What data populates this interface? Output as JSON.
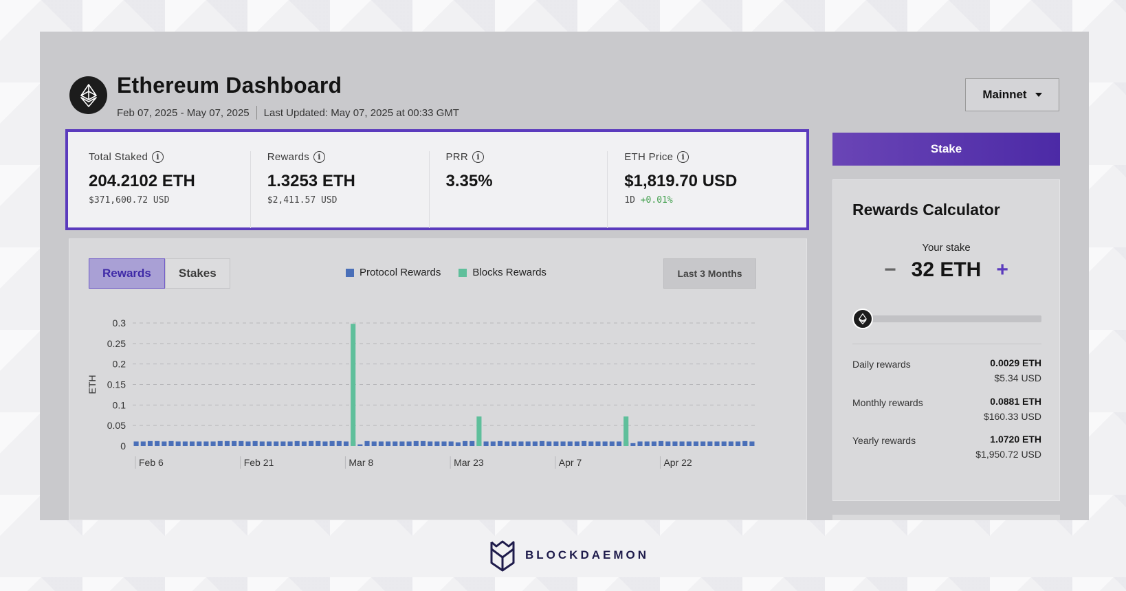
{
  "header": {
    "title": "Ethereum Dashboard",
    "date_range": "Feb 07, 2025 - May 07, 2025",
    "last_updated": "Last Updated: May 07, 2025 at 00:33 GMT",
    "network": "Mainnet"
  },
  "stats": {
    "total_staked": {
      "label": "Total Staked",
      "value": "204.2102 ETH",
      "sub": "$371,600.72 USD"
    },
    "rewards": {
      "label": "Rewards",
      "value": "1.3253 ETH",
      "sub": "$2,411.57 USD"
    },
    "prr": {
      "label": "PRR",
      "value": "3.35%"
    },
    "eth_price": {
      "label": "ETH Price",
      "value": "$1,819.70 USD",
      "period": "1D",
      "change": "+0.01%"
    }
  },
  "chart_panel": {
    "tabs": [
      {
        "label": "Rewards",
        "active": true
      },
      {
        "label": "Stakes",
        "active": false
      }
    ],
    "legend": {
      "protocol": "Protocol Rewards",
      "blocks": "Blocks Rewards"
    },
    "range": "Last 3 Months"
  },
  "chart_data": {
    "type": "bar",
    "title": "",
    "xlabel": "",
    "ylabel": "ETH",
    "ylim": [
      0,
      0.3
    ],
    "yticks": [
      "0",
      "0.05",
      "0.1",
      "0.15",
      "0.2",
      "0.25",
      "0.3"
    ],
    "xtick_labels": [
      "Feb 6",
      "Feb 21",
      "Mar 8",
      "Mar 23",
      "Apr 7",
      "Apr 22"
    ],
    "xtick_day_index": [
      0,
      15,
      30,
      45,
      60,
      75
    ],
    "series": [
      {
        "name": "Protocol Rewards",
        "color": "#4a6fb8",
        "values": [
          0.011,
          0.011,
          0.012,
          0.012,
          0.011,
          0.012,
          0.011,
          0.011,
          0.011,
          0.011,
          0.011,
          0.011,
          0.012,
          0.012,
          0.012,
          0.012,
          0.011,
          0.012,
          0.011,
          0.011,
          0.011,
          0.011,
          0.011,
          0.012,
          0.011,
          0.012,
          0.012,
          0.011,
          0.012,
          0.012,
          0.011,
          0.011,
          0.004,
          0.012,
          0.011,
          0.011,
          0.011,
          0.011,
          0.011,
          0.011,
          0.012,
          0.012,
          0.011,
          0.011,
          0.011,
          0.011,
          0.009,
          0.012,
          0.012,
          0.011,
          0.011,
          0.011,
          0.012,
          0.011,
          0.011,
          0.011,
          0.011,
          0.011,
          0.012,
          0.011,
          0.011,
          0.011,
          0.011,
          0.011,
          0.012,
          0.011,
          0.011,
          0.011,
          0.011,
          0.011,
          0.011,
          0.007,
          0.011,
          0.011,
          0.011,
          0.012,
          0.011,
          0.011,
          0.011,
          0.011,
          0.011,
          0.011,
          0.011,
          0.011,
          0.011,
          0.011,
          0.011,
          0.012,
          0.011
        ]
      },
      {
        "name": "Blocks Rewards",
        "color": "#5fbf9b",
        "values": [
          0,
          0,
          0,
          0,
          0,
          0,
          0,
          0,
          0,
          0,
          0,
          0,
          0,
          0,
          0,
          0,
          0,
          0,
          0,
          0,
          0,
          0,
          0,
          0,
          0,
          0,
          0,
          0,
          0,
          0,
          0,
          0.298,
          0,
          0,
          0,
          0,
          0,
          0,
          0,
          0,
          0,
          0,
          0,
          0,
          0,
          0,
          0,
          0,
          0,
          0.072,
          0,
          0,
          0,
          0,
          0,
          0,
          0,
          0,
          0,
          0,
          0,
          0,
          0,
          0,
          0,
          0,
          0,
          0,
          0,
          0,
          0.072,
          0,
          0,
          0,
          0,
          0,
          0,
          0,
          0,
          0,
          0,
          0,
          0,
          0,
          0,
          0,
          0,
          0,
          0
        ]
      }
    ]
  },
  "calculator": {
    "title": "Rewards Calculator",
    "stake_label": "Your stake",
    "stake_value": "32 ETH",
    "minus": "−",
    "plus": "+",
    "rows": [
      {
        "label": "Daily rewards",
        "eth": "0.0029 ETH",
        "usd": "$5.34 USD"
      },
      {
        "label": "Monthly rewards",
        "eth": "0.0881 ETH",
        "usd": "$160.33 USD"
      },
      {
        "label": "Yearly rewards",
        "eth": "1.0720 ETH",
        "usd": "$1,950.72 USD"
      }
    ]
  },
  "stake_button": "Stake",
  "brand": "BLOCKDAEMON",
  "colors": {
    "accent": "#5b3bbd",
    "protocol": "#4a6fb8",
    "blocks": "#5fbf9b",
    "positive": "#3f9e4a"
  }
}
